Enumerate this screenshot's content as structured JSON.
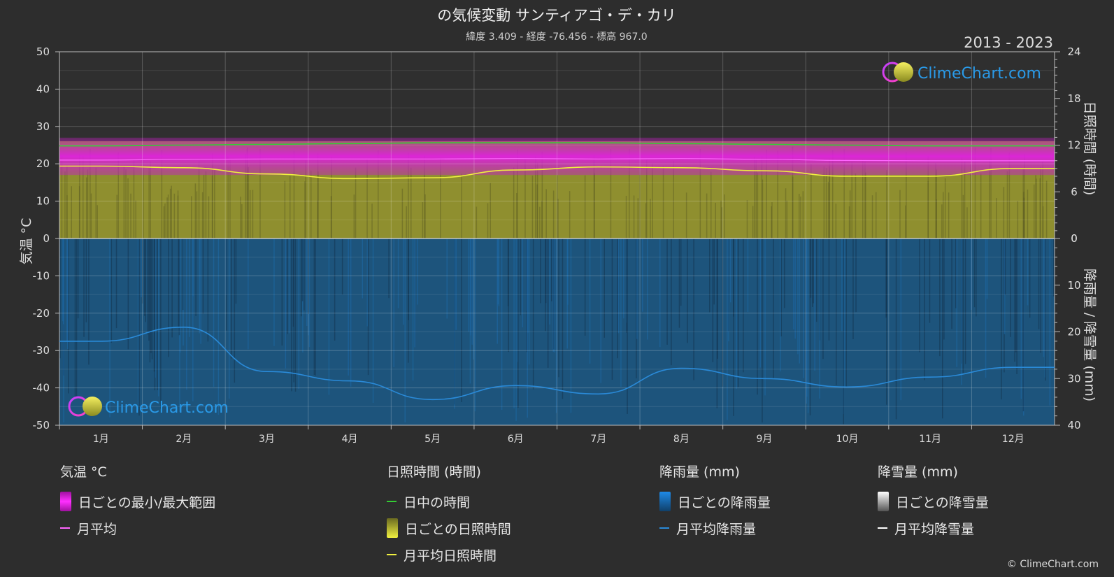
{
  "header": {
    "title": "の気候変動 サンティアゴ・デ・カリ",
    "subtitle": "緯度 3.409 - 経度 -76.456 - 標高 967.0",
    "year_range": "2013 - 2023"
  },
  "brand": {
    "name": "ClimeChart.com",
    "copyright": "© ClimeChart.com"
  },
  "colors": {
    "background": "#2d2d2d",
    "temp_range": "#d81fd8",
    "temp_avg": "#ff66ff",
    "daylight": "#33cc33",
    "sunshine_bar": "#9a9a30",
    "sunshine_avg": "#f0f040",
    "rain_bar": "#1a5a8a",
    "rain_avg": "#2a8ad8",
    "snow_avg": "#ffffff"
  },
  "chart_data": {
    "type": "line",
    "categories": [
      "1月",
      "2月",
      "3月",
      "4月",
      "5月",
      "6月",
      "7月",
      "8月",
      "9月",
      "10月",
      "11月",
      "12月"
    ],
    "axes": {
      "left": {
        "label": "気温 °C",
        "ticks": [
          50,
          40,
          30,
          20,
          10,
          0,
          -10,
          -20,
          -30,
          -40,
          -50
        ],
        "range": [
          -50,
          50
        ]
      },
      "right_top": {
        "label": "日照時間 (時間)",
        "ticks": [
          24,
          18,
          12,
          6,
          0
        ],
        "range": [
          0,
          24
        ]
      },
      "right_bottom": {
        "label": "降雨量 / 降雪量 (mm)",
        "ticks": [
          0,
          10,
          20,
          30,
          40
        ],
        "range": [
          0,
          40
        ]
      }
    },
    "grid": true,
    "series": [
      {
        "name": "日中の時間",
        "axis": "right_top",
        "values": [
          11.9,
          12.0,
          12.1,
          12.2,
          12.3,
          12.3,
          12.3,
          12.2,
          12.1,
          12.0,
          11.9,
          11.9
        ]
      },
      {
        "name": "月平均",
        "axis": "left",
        "values": [
          21.0,
          21.2,
          21.3,
          21.3,
          21.3,
          21.4,
          21.3,
          21.4,
          21.2,
          20.9,
          20.8,
          20.8
        ]
      },
      {
        "name": "月平均日照時間",
        "axis": "right_top",
        "values": [
          9.3,
          9.1,
          8.3,
          7.7,
          7.8,
          8.8,
          9.2,
          9.1,
          8.7,
          8.0,
          8.0,
          9.0
        ]
      },
      {
        "name": "月平均降雨量",
        "axis": "right_bottom",
        "values": [
          22.0,
          19.0,
          28.5,
          30.5,
          34.5,
          31.5,
          33.3,
          27.8,
          30.0,
          31.8,
          29.7,
          27.6
        ]
      }
    ],
    "daily_temp_range": {
      "min": 17.0,
      "max": 27.0
    }
  },
  "legend": {
    "groups": [
      {
        "title": "気温 °C",
        "items": [
          {
            "label": "日ごとの最小/最大範囲",
            "swatch": "box",
            "color": "#d81fd8"
          },
          {
            "label": "月平均",
            "swatch": "line",
            "color": "#ff66ff"
          }
        ]
      },
      {
        "title": "日照時間 (時間)",
        "items": [
          {
            "label": "日中の時間",
            "swatch": "line",
            "color": "#33cc33"
          },
          {
            "label": "日ごとの日照時間",
            "swatch": "box",
            "color": "#c8c83a"
          },
          {
            "label": "月平均日照時間",
            "swatch": "line",
            "color": "#f0f040"
          }
        ]
      },
      {
        "title": "降雨量 (mm)",
        "items": [
          {
            "label": "日ごとの降雨量",
            "swatch": "box",
            "color": "#1e7fd0"
          },
          {
            "label": "月平均降雨量",
            "swatch": "line",
            "color": "#2a8ad8"
          }
        ]
      },
      {
        "title": "降雪量 (mm)",
        "items": [
          {
            "label": "日ごとの降雪量",
            "swatch": "box",
            "color": "#cccccc"
          },
          {
            "label": "月平均降雪量",
            "swatch": "line",
            "color": "#ffffff"
          }
        ]
      }
    ]
  }
}
